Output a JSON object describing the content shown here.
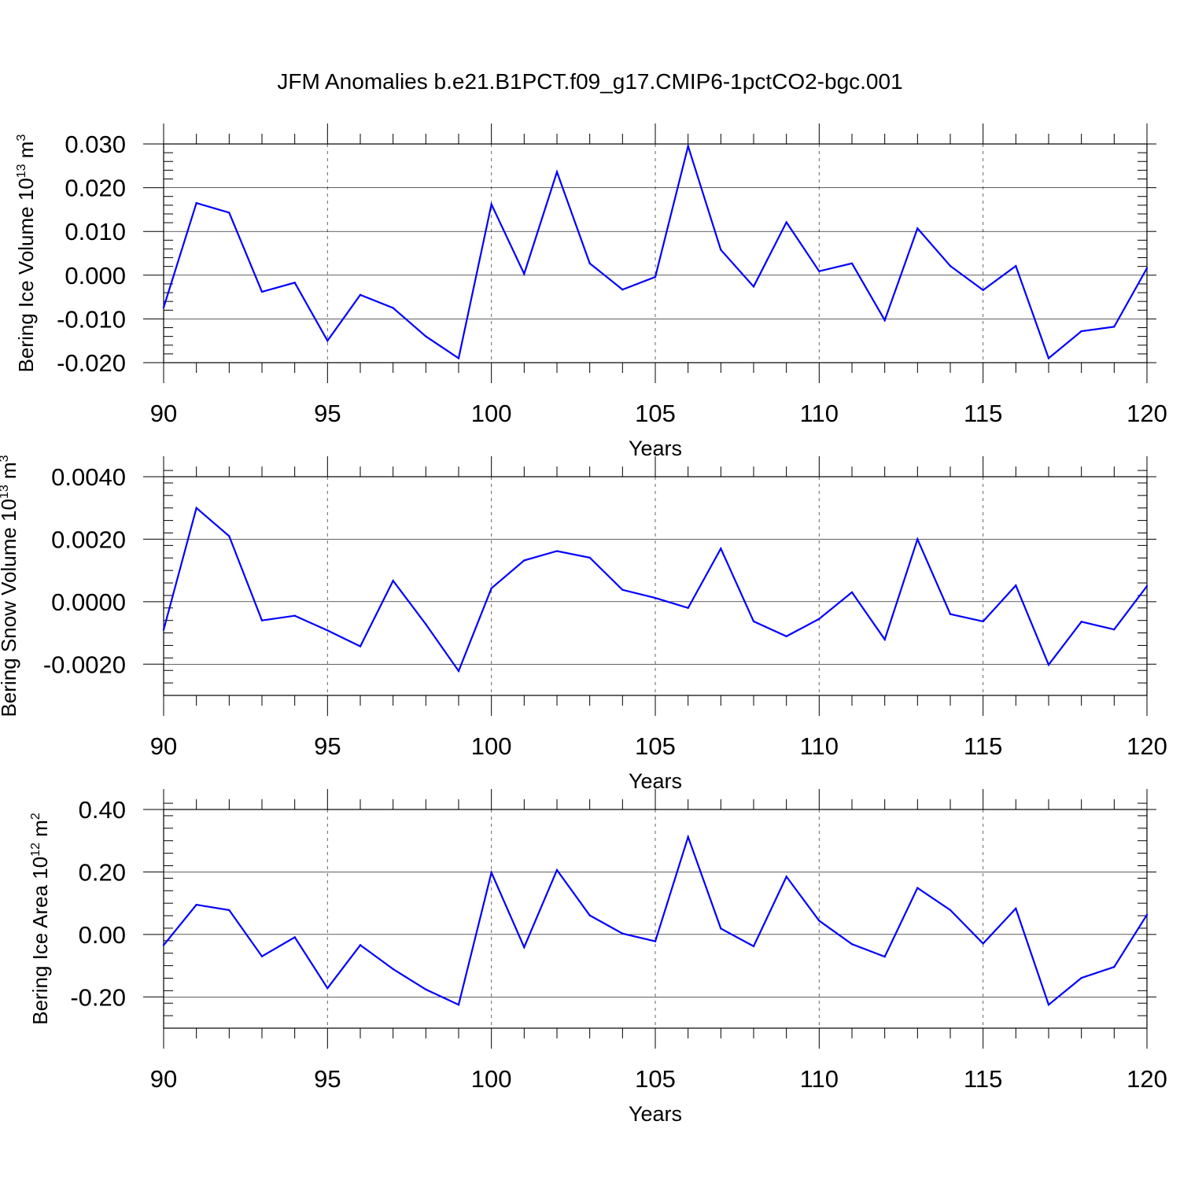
{
  "figure": {
    "title": "JFM Anomalies b.e21.B1PCT.f09_g17.CMIP6-1pctCO2-bgc.001"
  },
  "chart_data": [
    {
      "type": "line",
      "ylabel": "Bering Ice Volume 10",
      "ylabel_exp": "13",
      "ylabel_unit": " m",
      "ylabel_unit_exp": "3",
      "xlabel": "Years",
      "xlim": [
        90,
        120
      ],
      "ylim": [
        -0.02,
        0.03
      ],
      "yticks": [
        -0.02,
        -0.01,
        0.0,
        0.01,
        0.02,
        0.03
      ],
      "ytick_labels": [
        "-0.020",
        "-0.010",
        "0.000",
        "0.010",
        "0.020",
        "0.030"
      ],
      "xticks": [
        90,
        95,
        100,
        105,
        110,
        115,
        120
      ],
      "xtick_labels": [
        "90",
        "95",
        "100",
        "105",
        "110",
        "115",
        "120"
      ],
      "color": "#0000ff",
      "x": [
        90,
        91,
        92,
        93,
        94,
        95,
        96,
        97,
        98,
        99,
        100,
        101,
        102,
        103,
        104,
        105,
        106,
        107,
        108,
        109,
        110,
        111,
        112,
        113,
        114,
        115,
        116,
        117,
        118,
        119,
        120
      ],
      "values": [
        -0.0074,
        0.0165,
        0.0143,
        -0.0038,
        -0.0017,
        -0.015,
        -0.0045,
        -0.0075,
        -0.014,
        -0.019,
        0.0162,
        0.0003,
        0.0236,
        0.0027,
        -0.0033,
        -0.0004,
        0.0295,
        0.0058,
        -0.0026,
        0.0121,
        0.0009,
        0.0027,
        -0.0103,
        0.0107,
        0.0021,
        -0.0034,
        0.0021,
        -0.019,
        -0.0128,
        -0.0118,
        0.0016
      ]
    },
    {
      "type": "line",
      "ylabel": "Bering Snow Volume 10",
      "ylabel_exp": "13",
      "ylabel_unit": " m",
      "ylabel_unit_exp": "3",
      "xlabel": "Years",
      "xlim": [
        90,
        120
      ],
      "ylim": [
        -0.003,
        0.004
      ],
      "yticks": [
        -0.002,
        0.0,
        0.002,
        0.004
      ],
      "ytick_labels": [
        "-0.0020",
        "0.0000",
        "0.0020",
        "0.0040"
      ],
      "xticks": [
        90,
        95,
        100,
        105,
        110,
        115,
        120
      ],
      "xtick_labels": [
        "90",
        "95",
        "100",
        "105",
        "110",
        "115",
        "120"
      ],
      "color": "#0000ff",
      "x": [
        90,
        91,
        92,
        93,
        94,
        95,
        96,
        97,
        98,
        99,
        100,
        101,
        102,
        103,
        104,
        105,
        106,
        107,
        108,
        109,
        110,
        111,
        112,
        113,
        114,
        115,
        116,
        117,
        118,
        119,
        120
      ],
      "values": [
        -0.0009,
        0.003,
        0.0021,
        -0.0006,
        -0.00045,
        -0.00092,
        -0.00143,
        0.00067,
        -0.00072,
        -0.00222,
        0.00043,
        0.00132,
        0.00162,
        0.00141,
        0.00038,
        0.00012,
        -0.0002,
        0.0017,
        -0.00063,
        -0.00111,
        -0.00055,
        0.0003,
        -0.00121,
        0.002,
        -0.0004,
        -0.00063,
        0.00052,
        -0.00202,
        -0.00064,
        -0.00089,
        0.0005
      ]
    },
    {
      "type": "line",
      "ylabel": "Bering Ice Area 10",
      "ylabel_exp": "12",
      "ylabel_unit": " m",
      "ylabel_unit_exp": "2",
      "xlabel": "Years",
      "xlim": [
        90,
        120
      ],
      "ylim": [
        -0.3,
        0.4
      ],
      "yticks": [
        -0.2,
        0.0,
        0.2,
        0.4
      ],
      "ytick_labels": [
        "-0.20",
        "0.00",
        "0.20",
        "0.40"
      ],
      "xticks": [
        90,
        95,
        100,
        105,
        110,
        115,
        120
      ],
      "xtick_labels": [
        "90",
        "95",
        "100",
        "105",
        "110",
        "115",
        "120"
      ],
      "color": "#0000ff",
      "x": [
        90,
        91,
        92,
        93,
        94,
        95,
        96,
        97,
        98,
        99,
        100,
        101,
        102,
        103,
        104,
        105,
        106,
        107,
        108,
        109,
        110,
        111,
        112,
        113,
        114,
        115,
        116,
        117,
        118,
        119,
        120
      ],
      "values": [
        -0.034,
        0.095,
        0.078,
        -0.07,
        -0.009,
        -0.172,
        -0.034,
        -0.111,
        -0.176,
        -0.225,
        0.198,
        -0.041,
        0.206,
        0.061,
        0.003,
        -0.022,
        0.312,
        0.019,
        -0.038,
        0.185,
        0.044,
        -0.031,
        -0.071,
        0.149,
        0.078,
        -0.029,
        0.083,
        -0.225,
        -0.139,
        -0.104,
        0.063
      ]
    }
  ]
}
